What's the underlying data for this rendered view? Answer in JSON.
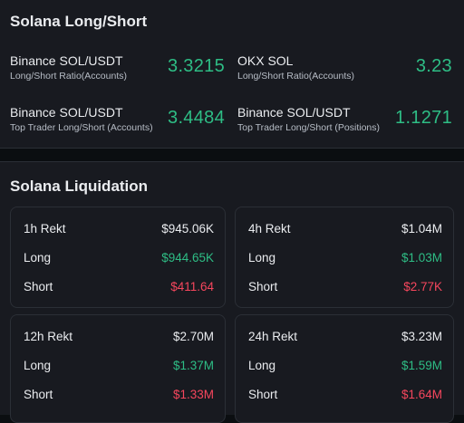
{
  "long_short": {
    "title": "Solana Long/Short",
    "metrics": [
      {
        "name": "Binance SOL/USDT",
        "sub": "Long/Short Ratio(Accounts)",
        "value": "3.3215"
      },
      {
        "name": "OKX SOL",
        "sub": "Long/Short Ratio(Accounts)",
        "value": "3.23"
      },
      {
        "name": "Binance SOL/USDT",
        "sub": "Top Trader Long/Short (Accounts)",
        "value": "3.4484"
      },
      {
        "name": "Binance SOL/USDT",
        "sub": "Top Trader Long/Short (Positions)",
        "value": "1.1271"
      }
    ]
  },
  "liquidation": {
    "title": "Solana Liquidation",
    "cards": [
      {
        "period": "1h Rekt",
        "total": "$945.06K",
        "long_label": "Long",
        "long": "$944.65K",
        "short_label": "Short",
        "short": "$411.64"
      },
      {
        "period": "4h Rekt",
        "total": "$1.04M",
        "long_label": "Long",
        "long": "$1.03M",
        "short_label": "Short",
        "short": "$2.77K"
      },
      {
        "period": "12h Rekt",
        "total": "$2.70M",
        "long_label": "Long",
        "long": "$1.37M",
        "short_label": "Short",
        "short": "$1.33M"
      },
      {
        "period": "24h Rekt",
        "total": "$3.23M",
        "long_label": "Long",
        "long": "$1.59M",
        "short_label": "Short",
        "short": "$1.64M"
      }
    ]
  },
  "colors": {
    "positive": "#2ebd85",
    "negative": "#f6465d",
    "panel": "#181a20",
    "background": "#0b0e11"
  }
}
